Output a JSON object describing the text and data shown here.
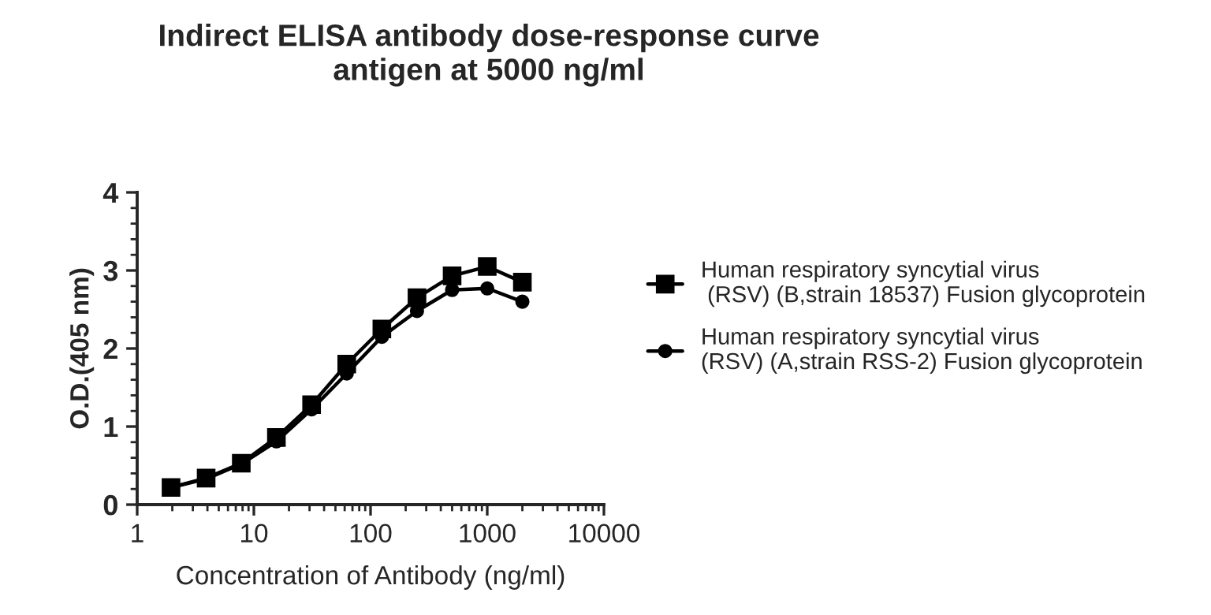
{
  "chart_data": {
    "type": "line",
    "title": "Indirect ELISA antibody dose-response curve\nantigen at 5000 ng/ml",
    "xlabel": "Concentration of Antibody (ng/ml)",
    "ylabel": "O.D.(405 nm)",
    "x": [
      1.95,
      3.9,
      7.8,
      15.6,
      31.25,
      62.5,
      125,
      250,
      500,
      1000,
      2000
    ],
    "series": [
      {
        "name": "Human respiratory syncytial virus\n (RSV) (B,strain 18537) Fusion glycoprotein",
        "color": "#000000",
        "marker": "square",
        "values": [
          0.22,
          0.34,
          0.53,
          0.86,
          1.28,
          1.8,
          2.25,
          2.65,
          2.93,
          3.05,
          2.85
        ]
      },
      {
        "name": "Human respiratory syncytial virus\n(RSV) (A,strain RSS-2) Fusion glycoprotein",
        "color": "#000000",
        "marker": "circle",
        "values": [
          0.22,
          0.33,
          0.52,
          0.81,
          1.22,
          1.68,
          2.15,
          2.48,
          2.75,
          2.77,
          2.6
        ]
      }
    ],
    "log": "x",
    "xlim": [
      1,
      10000
    ],
    "xticks": [
      1,
      10,
      100,
      1000,
      10000
    ],
    "ylim": [
      0,
      4
    ],
    "yticks": [
      0,
      1,
      2,
      3,
      4
    ],
    "grid": false,
    "legend": "right",
    "line_style": "solid"
  }
}
